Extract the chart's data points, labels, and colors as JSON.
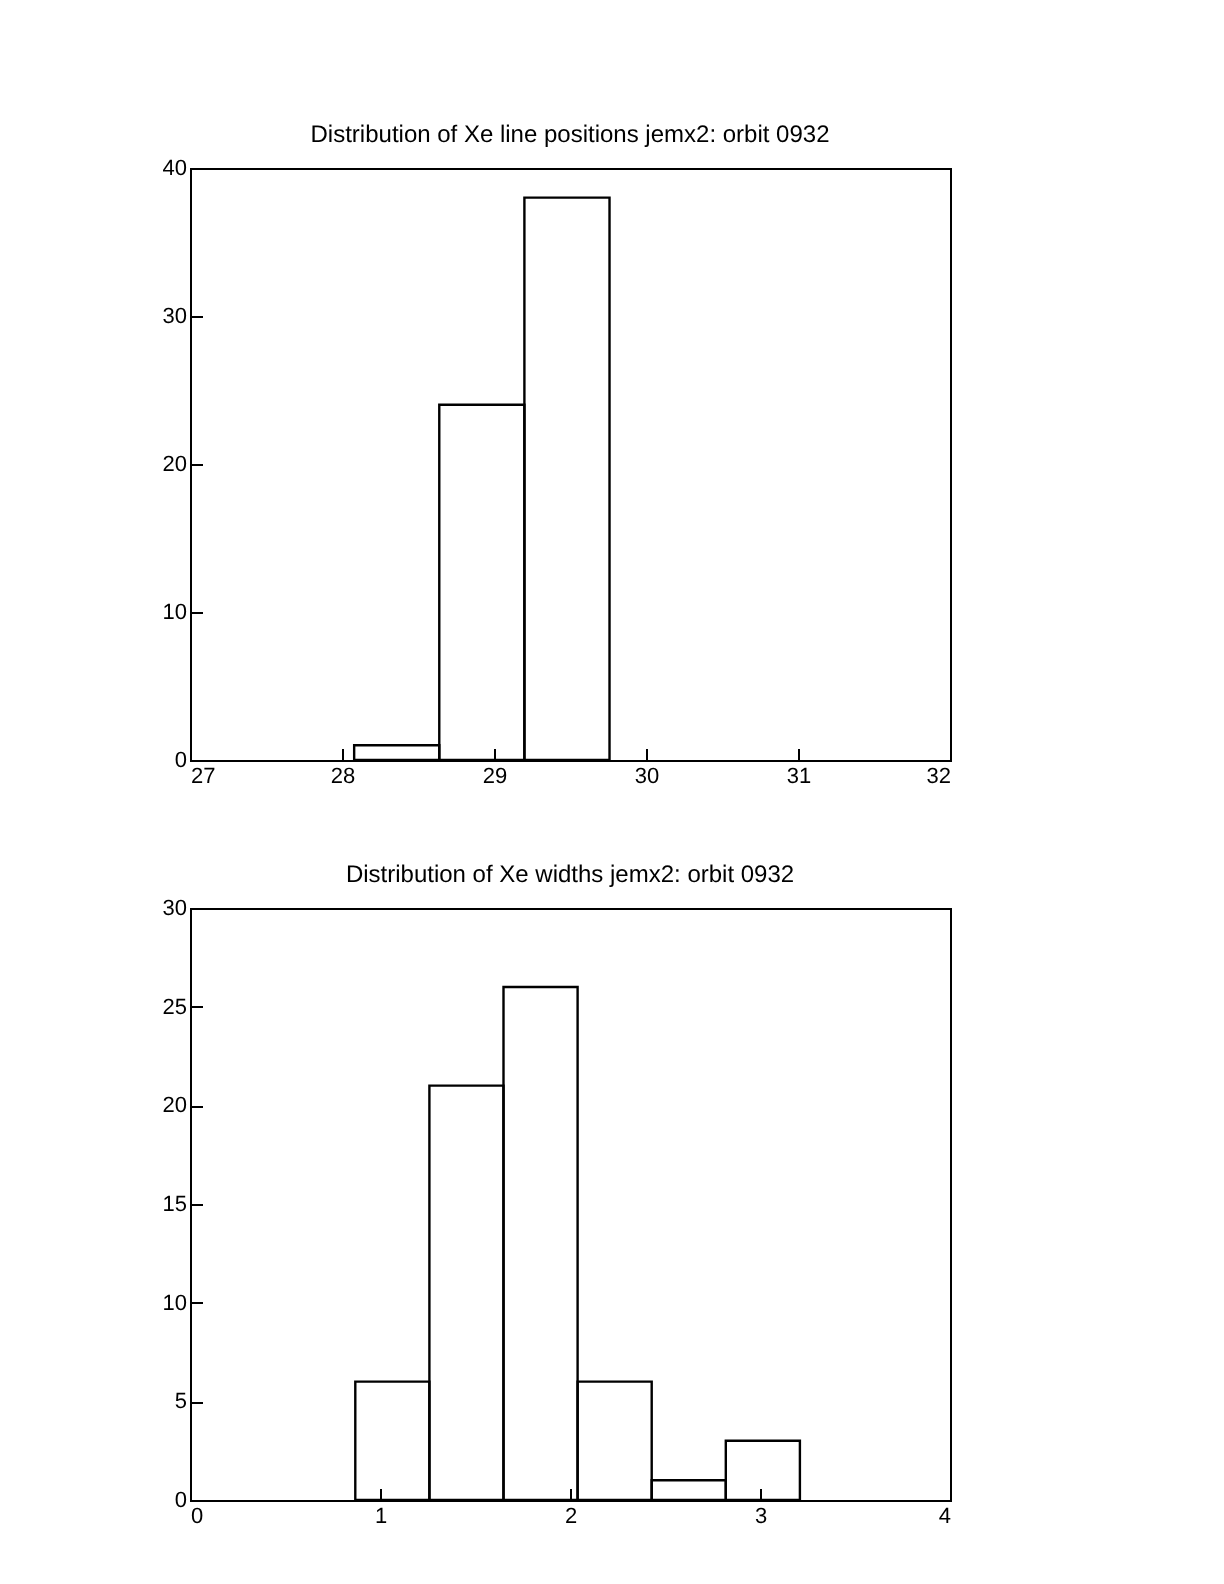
{
  "chart_data": [
    {
      "type": "histogram",
      "title": "Distribution of Xe line positions jemx2: orbit 0932",
      "bins": [
        28.08,
        28.64,
        29.2,
        29.76
      ],
      "values": [
        1,
        24,
        38
      ],
      "color": "#000000",
      "xlim": [
        27,
        32
      ],
      "xticks": [
        27,
        28,
        29,
        30,
        31,
        32
      ],
      "ylim": [
        0,
        40
      ],
      "yticks": [
        0,
        10,
        20,
        30,
        40
      ]
    },
    {
      "type": "histogram",
      "title": "Distribution of Xe widths jemx2: orbit 0932",
      "bins": [
        0.87,
        1.26,
        1.65,
        2.04,
        2.43,
        2.82,
        3.21
      ],
      "values": [
        6,
        21,
        26,
        6,
        1,
        3
      ],
      "color": "#000000",
      "xlim": [
        0,
        4
      ],
      "xticks": [
        0,
        1,
        2,
        3,
        4
      ],
      "ylim": [
        0,
        30
      ],
      "yticks": [
        0,
        5,
        10,
        15,
        20,
        25,
        30
      ]
    }
  ]
}
